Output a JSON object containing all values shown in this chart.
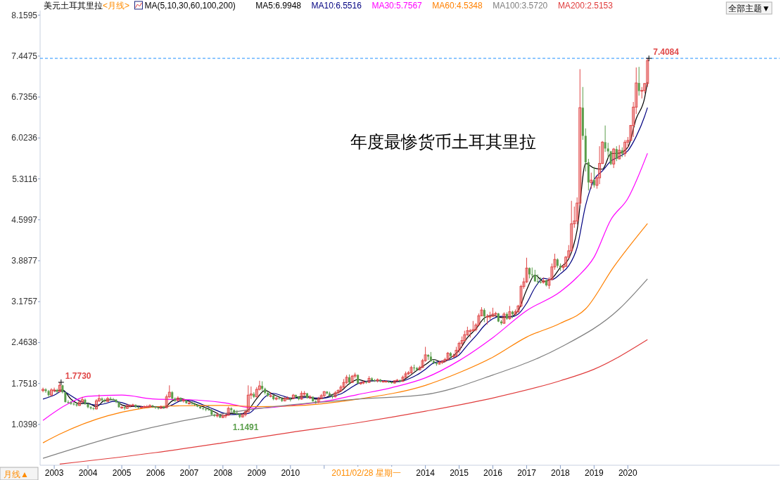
{
  "chart_data": {
    "type": "candlestick",
    "title": "美元土耳其里拉",
    "subtitle": "<月线>",
    "legend_title": "MA(5,10,30,60,100,200)",
    "legend": "top left",
    "xlim": [
      "2002-08",
      "2024-07"
    ],
    "ylim": [
      0.33,
      8.24
    ],
    "yticks": [
      8.1595,
      7.4475,
      6.7356,
      6.0236,
      5.3116,
      4.5997,
      3.8877,
      3.1757,
      2.4638,
      1.7518,
      1.0398
    ],
    "xticks": [
      {
        "value": "2003-01",
        "label": "2003"
      },
      {
        "value": "2004-01",
        "label": "2004"
      },
      {
        "value": "2005-01",
        "label": "2005"
      },
      {
        "value": "2006-01",
        "label": "2006"
      },
      {
        "value": "2007-01",
        "label": "2007"
      },
      {
        "value": "2008-01",
        "label": "2008"
      },
      {
        "value": "2009-01",
        "label": "2009"
      },
      {
        "value": "2010-01",
        "label": "2010"
      },
      {
        "value": "2011-01",
        "label": null
      },
      {
        "value": "2012-01",
        "label": null
      },
      {
        "value": "2013-01",
        "label": null
      },
      {
        "value": "2014-01",
        "label": "2014"
      },
      {
        "value": "2015-01",
        "label": "2015"
      },
      {
        "value": "2016-01",
        "label": "2016"
      },
      {
        "value": "2017-01",
        "label": "2017"
      },
      {
        "value": "2018-01",
        "label": "2018"
      },
      {
        "value": "2019-01",
        "label": "2019"
      },
      {
        "value": "2020-01",
        "label": "2020"
      }
    ],
    "x": [
      "2002-09",
      "2002-10",
      "2002-11",
      "2002-12",
      "2003-01",
      "2003-02",
      "2003-03",
      "2003-04",
      "2003-05",
      "2003-06",
      "2003-07",
      "2003-08",
      "2003-09",
      "2003-10",
      "2003-11",
      "2003-12",
      "2004-01",
      "2004-02",
      "2004-03",
      "2004-04",
      "2004-05",
      "2004-06",
      "2004-07",
      "2004-08",
      "2004-09",
      "2004-10",
      "2004-11",
      "2004-12",
      "2005-01",
      "2005-02",
      "2005-03",
      "2005-04",
      "2005-05",
      "2005-06",
      "2005-07",
      "2005-08",
      "2005-09",
      "2005-10",
      "2005-11",
      "2005-12",
      "2006-01",
      "2006-02",
      "2006-03",
      "2006-04",
      "2006-05",
      "2006-06",
      "2006-07",
      "2006-08",
      "2006-09",
      "2006-10",
      "2006-11",
      "2006-12",
      "2007-01",
      "2007-02",
      "2007-03",
      "2007-04",
      "2007-05",
      "2007-06",
      "2007-07",
      "2007-08",
      "2007-09",
      "2007-10",
      "2007-11",
      "2007-12",
      "2008-01",
      "2008-02",
      "2008-03",
      "2008-04",
      "2008-05",
      "2008-06",
      "2008-07",
      "2008-08",
      "2008-09",
      "2008-10",
      "2008-11",
      "2008-12",
      "2009-01",
      "2009-02",
      "2009-03",
      "2009-04",
      "2009-05",
      "2009-06",
      "2009-07",
      "2009-08",
      "2009-09",
      "2009-10",
      "2009-11",
      "2009-12",
      "2010-01",
      "2010-02",
      "2010-03",
      "2010-04",
      "2010-05",
      "2010-06",
      "2010-07",
      "2010-08",
      "2010-09",
      "2010-10",
      "2010-11",
      "2010-12",
      "2011-01",
      "2011-02",
      "2011-03",
      "2011-04",
      "2011-05",
      "2011-06",
      "2011-07",
      "2011-08",
      "2011-09",
      "2011-10",
      "2011-11",
      "2011-12",
      "2012-01",
      "2012-02",
      "2012-03",
      "2012-04",
      "2012-05",
      "2012-06",
      "2012-07",
      "2012-08",
      "2012-09",
      "2012-10",
      "2012-11",
      "2012-12",
      "2013-01",
      "2013-02",
      "2013-03",
      "2013-04",
      "2013-05",
      "2013-06",
      "2013-07",
      "2013-08",
      "2013-09",
      "2013-10",
      "2013-11",
      "2013-12",
      "2014-01",
      "2014-02",
      "2014-03",
      "2014-04",
      "2014-05",
      "2014-06",
      "2014-07",
      "2014-08",
      "2014-09",
      "2014-10",
      "2014-11",
      "2014-12",
      "2015-01",
      "2015-02",
      "2015-03",
      "2015-04",
      "2015-05",
      "2015-06",
      "2015-07",
      "2015-08",
      "2015-09",
      "2015-10",
      "2015-11",
      "2015-12",
      "2016-01",
      "2016-02",
      "2016-03",
      "2016-04",
      "2016-05",
      "2016-06",
      "2016-07",
      "2016-08",
      "2016-09",
      "2016-10",
      "2016-11",
      "2016-12",
      "2017-01",
      "2017-02",
      "2017-03",
      "2017-04",
      "2017-05",
      "2017-06",
      "2017-07",
      "2017-08",
      "2017-09",
      "2017-10",
      "2017-11",
      "2017-12",
      "2018-01",
      "2018-02",
      "2018-03",
      "2018-04",
      "2018-05",
      "2018-06",
      "2018-07",
      "2018-08",
      "2018-09",
      "2018-10",
      "2018-11",
      "2018-12",
      "2019-01",
      "2019-02",
      "2019-03",
      "2019-04",
      "2019-05",
      "2019-06",
      "2019-07",
      "2019-08",
      "2019-09",
      "2019-10",
      "2019-11",
      "2019-12",
      "2020-01",
      "2020-02",
      "2020-03",
      "2020-04",
      "2020-05",
      "2020-06",
      "2020-07",
      "2020-08"
    ],
    "ohlc": [
      [
        1.63,
        1.68,
        1.6,
        1.65
      ],
      [
        1.65,
        1.67,
        1.59,
        1.62
      ],
      [
        1.62,
        1.64,
        1.52,
        1.55
      ],
      [
        1.55,
        1.67,
        1.53,
        1.64
      ],
      [
        1.64,
        1.68,
        1.6,
        1.64
      ],
      [
        1.64,
        1.66,
        1.58,
        1.61
      ],
      [
        1.61,
        1.773,
        1.6,
        1.72
      ],
      [
        1.72,
        1.73,
        1.58,
        1.6
      ],
      [
        1.6,
        1.61,
        1.42,
        1.43
      ],
      [
        1.43,
        1.46,
        1.4,
        1.42
      ],
      [
        1.42,
        1.45,
        1.38,
        1.4
      ],
      [
        1.4,
        1.43,
        1.37,
        1.39
      ],
      [
        1.39,
        1.42,
        1.35,
        1.37
      ],
      [
        1.37,
        1.47,
        1.36,
        1.43
      ],
      [
        1.43,
        1.52,
        1.42,
        1.47
      ],
      [
        1.47,
        1.49,
        1.38,
        1.4
      ],
      [
        1.4,
        1.41,
        1.32,
        1.34
      ],
      [
        1.34,
        1.36,
        1.3,
        1.32
      ],
      [
        1.32,
        1.34,
        1.29,
        1.31
      ],
      [
        1.31,
        1.48,
        1.3,
        1.45
      ],
      [
        1.45,
        1.56,
        1.43,
        1.49
      ],
      [
        1.49,
        1.51,
        1.44,
        1.46
      ],
      [
        1.46,
        1.49,
        1.42,
        1.44
      ],
      [
        1.44,
        1.52,
        1.43,
        1.49
      ],
      [
        1.49,
        1.52,
        1.46,
        1.48
      ],
      [
        1.48,
        1.5,
        1.45,
        1.47
      ],
      [
        1.47,
        1.48,
        1.41,
        1.43
      ],
      [
        1.43,
        1.44,
        1.33,
        1.34
      ],
      [
        1.34,
        1.36,
        1.31,
        1.34
      ],
      [
        1.34,
        1.35,
        1.29,
        1.32
      ],
      [
        1.32,
        1.4,
        1.31,
        1.37
      ],
      [
        1.37,
        1.39,
        1.34,
        1.37
      ],
      [
        1.37,
        1.4,
        1.35,
        1.38
      ],
      [
        1.38,
        1.39,
        1.33,
        1.34
      ],
      [
        1.34,
        1.36,
        1.31,
        1.33
      ],
      [
        1.33,
        1.36,
        1.32,
        1.34
      ],
      [
        1.34,
        1.37,
        1.32,
        1.35
      ],
      [
        1.35,
        1.38,
        1.33,
        1.35
      ],
      [
        1.35,
        1.39,
        1.34,
        1.37
      ],
      [
        1.37,
        1.38,
        1.33,
        1.35
      ],
      [
        1.35,
        1.36,
        1.31,
        1.33
      ],
      [
        1.33,
        1.34,
        1.3,
        1.32
      ],
      [
        1.32,
        1.37,
        1.31,
        1.35
      ],
      [
        1.35,
        1.36,
        1.31,
        1.33
      ],
      [
        1.33,
        1.56,
        1.32,
        1.52
      ],
      [
        1.52,
        1.72,
        1.5,
        1.6
      ],
      [
        1.6,
        1.62,
        1.47,
        1.49
      ],
      [
        1.49,
        1.51,
        1.43,
        1.45
      ],
      [
        1.45,
        1.53,
        1.44,
        1.5
      ],
      [
        1.5,
        1.51,
        1.43,
        1.45
      ],
      [
        1.45,
        1.49,
        1.42,
        1.46
      ],
      [
        1.46,
        1.47,
        1.4,
        1.41
      ],
      [
        1.41,
        1.45,
        1.39,
        1.41
      ],
      [
        1.41,
        1.44,
        1.38,
        1.4
      ],
      [
        1.4,
        1.42,
        1.36,
        1.38
      ],
      [
        1.38,
        1.39,
        1.34,
        1.35
      ],
      [
        1.35,
        1.36,
        1.31,
        1.32
      ],
      [
        1.32,
        1.34,
        1.29,
        1.31
      ],
      [
        1.31,
        1.33,
        1.27,
        1.3
      ],
      [
        1.3,
        1.37,
        1.28,
        1.29
      ],
      [
        1.29,
        1.31,
        1.2,
        1.21
      ],
      [
        1.21,
        1.23,
        1.17,
        1.19
      ],
      [
        1.19,
        1.25,
        1.16,
        1.2
      ],
      [
        1.2,
        1.21,
        1.15,
        1.16
      ],
      [
        1.16,
        1.22,
        1.15,
        1.19
      ],
      [
        1.19,
        1.22,
        1.15,
        1.2
      ],
      [
        1.2,
        1.35,
        1.19,
        1.32
      ],
      [
        1.32,
        1.34,
        1.25,
        1.29
      ],
      [
        1.29,
        1.3,
        1.22,
        1.24
      ],
      [
        1.24,
        1.29,
        1.2,
        1.22
      ],
      [
        1.22,
        1.23,
        1.1491,
        1.17
      ],
      [
        1.17,
        1.23,
        1.16,
        1.21
      ],
      [
        1.21,
        1.29,
        1.18,
        1.26
      ],
      [
        1.26,
        1.72,
        1.25,
        1.55
      ],
      [
        1.55,
        1.7,
        1.48,
        1.57
      ],
      [
        1.57,
        1.6,
        1.5,
        1.52
      ],
      [
        1.52,
        1.69,
        1.51,
        1.65
      ],
      [
        1.65,
        1.8,
        1.63,
        1.71
      ],
      [
        1.71,
        1.79,
        1.62,
        1.66
      ],
      [
        1.66,
        1.68,
        1.56,
        1.59
      ],
      [
        1.59,
        1.61,
        1.52,
        1.54
      ],
      [
        1.54,
        1.6,
        1.51,
        1.54
      ],
      [
        1.54,
        1.56,
        1.46,
        1.48
      ],
      [
        1.48,
        1.52,
        1.46,
        1.5
      ],
      [
        1.5,
        1.52,
        1.47,
        1.49
      ],
      [
        1.49,
        1.5,
        1.43,
        1.45
      ],
      [
        1.45,
        1.52,
        1.44,
        1.49
      ],
      [
        1.49,
        1.53,
        1.47,
        1.5
      ],
      [
        1.5,
        1.51,
        1.44,
        1.49
      ],
      [
        1.49,
        1.57,
        1.48,
        1.55
      ],
      [
        1.55,
        1.56,
        1.5,
        1.52
      ],
      [
        1.52,
        1.53,
        1.46,
        1.48
      ],
      [
        1.48,
        1.62,
        1.47,
        1.58
      ],
      [
        1.58,
        1.62,
        1.54,
        1.58
      ],
      [
        1.58,
        1.59,
        1.49,
        1.5
      ],
      [
        1.5,
        1.55,
        1.48,
        1.52
      ],
      [
        1.52,
        1.53,
        1.44,
        1.44
      ],
      [
        1.44,
        1.46,
        1.4,
        1.43
      ],
      [
        1.43,
        1.52,
        1.41,
        1.49
      ],
      [
        1.49,
        1.57,
        1.48,
        1.54
      ],
      [
        1.54,
        1.62,
        1.51,
        1.61
      ],
      [
        1.61,
        1.62,
        1.56,
        1.58
      ],
      [
        1.58,
        1.61,
        1.53,
        1.54
      ],
      [
        1.54,
        1.56,
        1.49,
        1.52
      ],
      [
        1.52,
        1.62,
        1.51,
        1.59
      ],
      [
        1.59,
        1.65,
        1.57,
        1.63
      ],
      [
        1.63,
        1.72,
        1.6,
        1.69
      ],
      [
        1.69,
        1.83,
        1.67,
        1.77
      ],
      [
        1.77,
        1.9,
        1.74,
        1.86
      ],
      [
        1.86,
        1.91,
        1.73,
        1.77
      ],
      [
        1.77,
        1.9,
        1.76,
        1.88
      ],
      [
        1.88,
        1.94,
        1.84,
        1.9
      ],
      [
        1.9,
        1.91,
        1.75,
        1.75
      ],
      [
        1.75,
        1.78,
        1.73,
        1.76
      ],
      [
        1.76,
        1.8,
        1.74,
        1.78
      ],
      [
        1.78,
        1.8,
        1.75,
        1.77
      ],
      [
        1.77,
        1.88,
        1.76,
        1.84
      ],
      [
        1.84,
        1.86,
        1.79,
        1.81
      ],
      [
        1.81,
        1.83,
        1.78,
        1.8
      ],
      [
        1.8,
        1.84,
        1.77,
        1.82
      ],
      [
        1.82,
        1.83,
        1.77,
        1.79
      ],
      [
        1.79,
        1.81,
        1.77,
        1.79
      ],
      [
        1.79,
        1.81,
        1.77,
        1.79
      ],
      [
        1.79,
        1.8,
        1.76,
        1.78
      ],
      [
        1.78,
        1.79,
        1.75,
        1.76
      ],
      [
        1.76,
        1.81,
        1.75,
        1.8
      ],
      [
        1.8,
        1.83,
        1.79,
        1.81
      ],
      [
        1.81,
        1.82,
        1.77,
        1.79
      ],
      [
        1.79,
        1.89,
        1.78,
        1.86
      ],
      [
        1.86,
        1.96,
        1.85,
        1.92
      ],
      [
        1.92,
        1.97,
        1.9,
        1.94
      ],
      [
        1.94,
        2.06,
        1.92,
        2.03
      ],
      [
        2.03,
        2.08,
        1.97,
        2.02
      ],
      [
        2.02,
        2.04,
        1.97,
        1.99
      ],
      [
        1.99,
        2.06,
        1.98,
        2.03
      ],
      [
        2.03,
        2.18,
        2.02,
        2.15
      ],
      [
        2.15,
        2.39,
        2.13,
        2.25
      ],
      [
        2.25,
        2.26,
        2.16,
        2.22
      ],
      [
        2.22,
        2.3,
        2.13,
        2.14
      ],
      [
        2.14,
        2.17,
        2.09,
        2.11
      ],
      [
        2.11,
        2.13,
        2.06,
        2.09
      ],
      [
        2.09,
        2.15,
        2.08,
        2.12
      ],
      [
        2.12,
        2.16,
        2.09,
        2.14
      ],
      [
        2.14,
        2.2,
        2.12,
        2.17
      ],
      [
        2.17,
        2.3,
        2.15,
        2.28
      ],
      [
        2.28,
        2.3,
        2.2,
        2.23
      ],
      [
        2.23,
        2.27,
        2.19,
        2.23
      ],
      [
        2.23,
        2.39,
        2.22,
        2.33
      ],
      [
        2.33,
        2.48,
        2.28,
        2.45
      ],
      [
        2.45,
        2.57,
        2.38,
        2.5
      ],
      [
        2.5,
        2.67,
        2.48,
        2.6
      ],
      [
        2.6,
        2.74,
        2.58,
        2.67
      ],
      [
        2.67,
        2.7,
        2.55,
        2.67
      ],
      [
        2.67,
        2.84,
        2.65,
        2.69
      ],
      [
        2.69,
        2.8,
        2.66,
        2.77
      ],
      [
        2.77,
        2.97,
        2.75,
        2.93
      ],
      [
        2.93,
        3.08,
        2.92,
        3.03
      ],
      [
        3.03,
        3.06,
        2.82,
        2.92
      ],
      [
        2.92,
        2.96,
        2.78,
        2.92
      ],
      [
        2.92,
        3.0,
        2.86,
        2.92
      ],
      [
        2.92,
        3.07,
        2.91,
        2.96
      ],
      [
        2.96,
        3.0,
        2.91,
        2.97
      ],
      [
        2.97,
        2.98,
        2.82,
        2.83
      ],
      [
        2.83,
        2.86,
        2.77,
        2.8
      ],
      [
        2.8,
        2.99,
        2.79,
        2.96
      ],
      [
        2.96,
        2.99,
        2.86,
        2.88
      ],
      [
        2.88,
        3.1,
        2.86,
        3.0
      ],
      [
        3.0,
        3.02,
        2.89,
        2.96
      ],
      [
        2.96,
        3.04,
        2.93,
        3.0
      ],
      [
        3.0,
        3.12,
        2.98,
        3.1
      ],
      [
        3.1,
        3.47,
        3.08,
        3.44
      ],
      [
        3.44,
        3.59,
        3.4,
        3.52
      ],
      [
        3.52,
        3.94,
        3.5,
        3.76
      ],
      [
        3.76,
        3.77,
        3.58,
        3.65
      ],
      [
        3.65,
        3.77,
        3.59,
        3.64
      ],
      [
        3.64,
        3.73,
        3.52,
        3.53
      ],
      [
        3.53,
        3.65,
        3.48,
        3.52
      ],
      [
        3.52,
        3.6,
        3.49,
        3.51
      ],
      [
        3.51,
        3.6,
        3.49,
        3.54
      ],
      [
        3.54,
        3.56,
        3.44,
        3.46
      ],
      [
        3.46,
        3.6,
        3.4,
        3.56
      ],
      [
        3.56,
        3.84,
        3.55,
        3.78
      ],
      [
        3.78,
        4.01,
        3.73,
        3.91
      ],
      [
        3.91,
        3.93,
        3.76,
        3.8
      ],
      [
        3.8,
        3.84,
        3.71,
        3.77
      ],
      [
        3.77,
        3.83,
        3.72,
        3.79
      ],
      [
        3.79,
        3.97,
        3.78,
        3.95
      ],
      [
        3.95,
        4.16,
        3.93,
        4.06
      ],
      [
        4.06,
        4.93,
        4.04,
        4.53
      ],
      [
        4.53,
        4.83,
        4.46,
        4.58
      ],
      [
        4.58,
        4.99,
        4.52,
        4.89
      ],
      [
        4.89,
        7.22,
        4.85,
        6.55
      ],
      [
        6.55,
        6.91,
        5.99,
        6.06
      ],
      [
        6.06,
        6.19,
        5.44,
        5.6
      ],
      [
        5.6,
        5.66,
        5.11,
        5.25
      ],
      [
        5.25,
        5.42,
        5.14,
        5.29
      ],
      [
        5.29,
        5.52,
        5.16,
        5.2
      ],
      [
        5.2,
        5.36,
        5.14,
        5.33
      ],
      [
        5.33,
        5.88,
        5.22,
        5.58
      ],
      [
        5.58,
        5.97,
        5.57,
        5.95
      ],
      [
        5.95,
        6.24,
        5.78,
        5.84
      ],
      [
        5.84,
        5.94,
        5.67,
        5.79
      ],
      [
        5.79,
        5.8,
        5.55,
        5.57
      ],
      [
        5.57,
        5.85,
        5.5,
        5.83
      ],
      [
        5.83,
        5.88,
        5.62,
        5.66
      ],
      [
        5.66,
        5.9,
        5.65,
        5.81
      ],
      [
        5.81,
        5.86,
        5.69,
        5.75
      ],
      [
        5.75,
        5.99,
        5.7,
        5.95
      ],
      [
        5.95,
        6.04,
        5.86,
        5.98
      ],
      [
        5.98,
        6.25,
        5.97,
        6.24
      ],
      [
        6.24,
        6.65,
        6.04,
        6.56
      ],
      [
        6.56,
        7.25,
        6.44,
        6.98
      ],
      [
        6.98,
        7.26,
        6.76,
        6.84
      ],
      [
        6.84,
        6.91,
        6.71,
        6.85
      ],
      [
        6.85,
        6.98,
        6.8,
        6.97
      ],
      [
        6.97,
        7.4084,
        6.91,
        7.37
      ]
    ],
    "series": [
      {
        "name": "MA5:6.9948",
        "color": "#000000",
        "type": "line",
        "x": [
          "2003-01",
          "2003-04",
          "2003-07",
          "2003-10",
          "2004-01",
          "2004-04",
          "2004-07",
          "2004-10",
          "2005-01",
          "2005-04",
          "2005-07",
          "2005-10",
          "2006-01",
          "2006-04",
          "2006-07",
          "2006-10",
          "2007-01",
          "2007-04",
          "2007-07",
          "2007-10",
          "2008-01",
          "2008-04",
          "2008-07",
          "2008-10",
          "2009-01",
          "2009-04",
          "2009-07",
          "2009-10",
          "2010-01",
          "2010-04",
          "2010-07",
          "2010-10",
          "2011-01",
          "2011-04",
          "2011-07",
          "2011-10",
          "2012-01",
          "2012-04",
          "2012-07",
          "2012-10",
          "2013-01",
          "2013-04",
          "2013-07",
          "2013-10",
          "2014-01",
          "2014-04",
          "2014-07",
          "2014-10",
          "2015-01",
          "2015-04",
          "2015-07",
          "2015-10",
          "2016-01",
          "2016-04",
          "2016-07",
          "2016-10",
          "2017-01",
          "2017-04",
          "2017-07",
          "2017-10",
          "2018-01",
          "2018-04",
          "2018-07",
          "2018-10",
          "2019-01",
          "2019-04",
          "2019-07",
          "2019-10",
          "2020-01",
          "2020-04",
          "2020-07",
          "2020-08"
        ],
        "values": [
          1.62,
          1.64,
          1.48,
          1.4,
          1.41,
          1.35,
          1.46,
          1.47,
          1.38,
          1.35,
          1.36,
          1.34,
          1.35,
          1.33,
          1.45,
          1.49,
          1.44,
          1.38,
          1.33,
          1.26,
          1.19,
          1.23,
          1.22,
          1.29,
          1.49,
          1.63,
          1.56,
          1.5,
          1.48,
          1.52,
          1.53,
          1.48,
          1.5,
          1.56,
          1.62,
          1.75,
          1.82,
          1.79,
          1.8,
          1.8,
          1.78,
          1.79,
          1.87,
          1.98,
          2.08,
          2.17,
          2.12,
          2.2,
          2.33,
          2.55,
          2.7,
          2.89,
          2.94,
          2.9,
          2.91,
          3.02,
          3.38,
          3.64,
          3.53,
          3.58,
          3.77,
          3.92,
          4.42,
          5.58,
          5.5,
          5.48,
          5.75,
          5.76,
          5.86,
          6.36,
          6.72,
          6.9948
        ]
      },
      {
        "name": "MA10:6.5516",
        "color": "#000080",
        "type": "line",
        "x": [
          "2002-09",
          "2003-01",
          "2003-04",
          "2003-07",
          "2003-10",
          "2004-01",
          "2004-04",
          "2004-07",
          "2004-10",
          "2005-01",
          "2005-04",
          "2005-07",
          "2005-10",
          "2006-01",
          "2006-04",
          "2006-07",
          "2006-10",
          "2007-01",
          "2007-04",
          "2007-07",
          "2007-10",
          "2008-01",
          "2008-04",
          "2008-07",
          "2008-10",
          "2009-01",
          "2009-04",
          "2009-07",
          "2009-10",
          "2010-01",
          "2010-04",
          "2010-07",
          "2010-10",
          "2011-01",
          "2011-04",
          "2011-07",
          "2011-10",
          "2012-01",
          "2012-04",
          "2012-07",
          "2012-10",
          "2013-01",
          "2013-04",
          "2013-07",
          "2013-10",
          "2014-01",
          "2014-04",
          "2014-07",
          "2014-10",
          "2015-01",
          "2015-04",
          "2015-07",
          "2015-10",
          "2016-01",
          "2016-04",
          "2016-07",
          "2016-10",
          "2017-01",
          "2017-04",
          "2017-07",
          "2017-10",
          "2018-01",
          "2018-04",
          "2018-07",
          "2018-10",
          "2019-01",
          "2019-04",
          "2019-07",
          "2019-10",
          "2020-01",
          "2020-04",
          "2020-07",
          "2020-08"
        ],
        "values": [
          1.48,
          1.55,
          1.62,
          1.54,
          1.45,
          1.4,
          1.38,
          1.4,
          1.44,
          1.42,
          1.37,
          1.35,
          1.35,
          1.35,
          1.34,
          1.38,
          1.45,
          1.46,
          1.42,
          1.36,
          1.3,
          1.24,
          1.21,
          1.22,
          1.23,
          1.35,
          1.52,
          1.58,
          1.54,
          1.5,
          1.5,
          1.51,
          1.5,
          1.5,
          1.53,
          1.57,
          1.66,
          1.75,
          1.79,
          1.8,
          1.8,
          1.79,
          1.79,
          1.83,
          1.9,
          2.0,
          2.11,
          2.14,
          2.17,
          2.25,
          2.42,
          2.58,
          2.76,
          2.88,
          2.92,
          2.91,
          2.96,
          3.15,
          3.42,
          3.58,
          3.56,
          3.66,
          3.8,
          4.12,
          4.85,
          5.3,
          5.45,
          5.62,
          5.7,
          5.8,
          6.05,
          6.4,
          6.5516
        ]
      },
      {
        "name": "MA30:5.7567",
        "color": "#ff00ff",
        "type": "line",
        "x": [
          "2002-09",
          "2003-06",
          "2004-01",
          "2005-01",
          "2006-01",
          "2007-01",
          "2008-01",
          "2009-01",
          "2010-01",
          "2011-01",
          "2012-01",
          "2013-01",
          "2014-01",
          "2015-01",
          "2016-01",
          "2017-01",
          "2018-01",
          "2018-07",
          "2019-01",
          "2019-07",
          "2020-01",
          "2020-08"
        ],
        "values": [
          1.11,
          1.4,
          1.53,
          1.55,
          1.48,
          1.47,
          1.42,
          1.32,
          1.37,
          1.44,
          1.56,
          1.68,
          1.85,
          2.15,
          2.55,
          3.02,
          3.35,
          3.6,
          3.95,
          4.6,
          4.97,
          5.7567
        ]
      },
      {
        "name": "MA60:4.5348",
        "color": "#ff8000",
        "type": "line",
        "x": [
          "2002-09",
          "2003-03",
          "2004-08",
          "2005-06",
          "2006-06",
          "2008-01",
          "2009-01",
          "2010-01",
          "2012-01",
          "2014-01",
          "2015-01",
          "2016-01",
          "2017-01",
          "2018-01",
          "2018-10",
          "2019-08",
          "2020-08"
        ],
        "values": [
          0.72,
          0.87,
          1.19,
          1.3,
          1.36,
          1.37,
          1.35,
          1.36,
          1.48,
          1.72,
          1.94,
          2.21,
          2.56,
          2.8,
          3.05,
          3.78,
          4.5348
        ]
      },
      {
        "name": "MA100:3.5720",
        "color": "#808080",
        "type": "line",
        "x": [
          "2002-09",
          "2005-01",
          "2008-08",
          "2010-01",
          "2012-01",
          "2014-01",
          "2016-01",
          "2018-01",
          "2019-10",
          "2020-08"
        ],
        "values": [
          0.45,
          0.86,
          1.28,
          1.38,
          1.48,
          1.56,
          1.9,
          2.38,
          3.05,
          3.572
        ]
      },
      {
        "name": "MA200:2.5153",
        "color": "#e03c3c",
        "type": "line",
        "x": [
          "2003-03",
          "2006-01",
          "2008-01",
          "2010-01",
          "2012-01",
          "2014-01",
          "2016-01",
          "2018-01",
          "2019-01",
          "2020-08"
        ],
        "values": [
          0.35,
          0.55,
          0.72,
          0.9,
          1.07,
          1.27,
          1.5,
          1.8,
          2.0,
          2.5153
        ]
      }
    ],
    "ref_lines": [
      {
        "axis": "y",
        "value": 7.4084,
        "color": "#1e90ff",
        "line_style": "dashed"
      }
    ],
    "annotations": [
      {
        "text": "7.4084",
        "x": "2020-08",
        "y": 7.4084
      },
      {
        "text": "1.7730",
        "x": "2003-03",
        "y": 1.773
      },
      {
        "text": "1.1491",
        "x": "2008-07",
        "y": 1.1491
      },
      "2011/02/28 星期一",
      "年度最惨货币土耳其里拉",
      "全部主题▼",
      "月线▲"
    ]
  }
}
